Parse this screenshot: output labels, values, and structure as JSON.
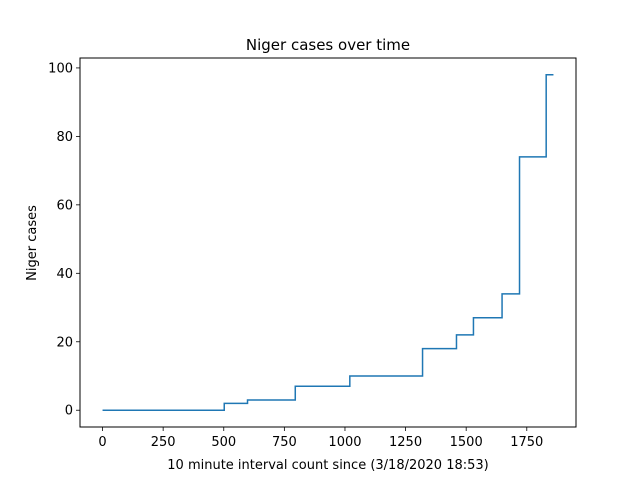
{
  "chart_data": {
    "type": "line",
    "step": "post",
    "title": "Niger cases over time",
    "xlabel": "10 minute interval count since (3/18/2020 18:53)",
    "ylabel": "Niger cases",
    "xlim": [
      -93,
      1953
    ],
    "ylim": [
      -4.9,
      102.9
    ],
    "xticks": [
      0,
      250,
      500,
      750,
      1000,
      1250,
      1500,
      1750
    ],
    "yticks": [
      0,
      20,
      40,
      60,
      80,
      100
    ],
    "grid": false,
    "series": [
      {
        "color": "#1f77b4",
        "points": [
          [
            0,
            0
          ],
          [
            502,
            0
          ],
          [
            502,
            2
          ],
          [
            598,
            2
          ],
          [
            598,
            3
          ],
          [
            795,
            3
          ],
          [
            795,
            7
          ],
          [
            1020,
            7
          ],
          [
            1020,
            10
          ],
          [
            1320,
            10
          ],
          [
            1320,
            18
          ],
          [
            1460,
            18
          ],
          [
            1460,
            22
          ],
          [
            1530,
            22
          ],
          [
            1530,
            27
          ],
          [
            1648,
            27
          ],
          [
            1648,
            34
          ],
          [
            1720,
            34
          ],
          [
            1720,
            74
          ],
          [
            1830,
            74
          ],
          [
            1830,
            98
          ],
          [
            1860,
            98
          ]
        ]
      }
    ]
  }
}
